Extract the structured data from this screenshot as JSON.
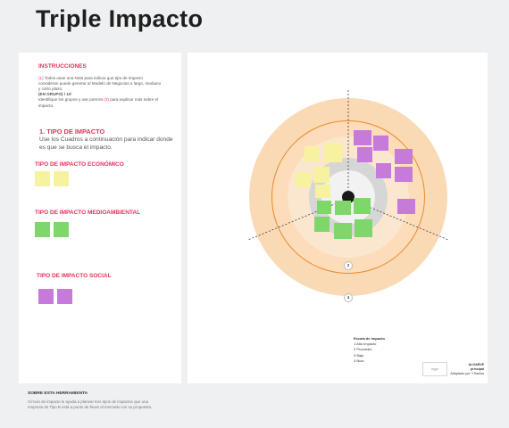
{
  "page_title": "Triple Impacto",
  "instructions": {
    "heading": "INSTRUCCIONES",
    "step1_number": "(1)",
    "step1_text": " Todos usan una Nota para indicar que tipo de impacto consideran puede generar al Modelo de Negocios a largo, mediano y corto plazo.",
    "group_line": "(EN GRUPO) / 10'",
    "step2_pre": "Identifique los grupos y use post-its ",
    "step2_number": "(2)",
    "step2_post": " para explicar más sobre el impacto."
  },
  "tipo": {
    "heading": "1. TIPO DE IMPACTO",
    "body": "Use los Cuadros a continuación para indicar donde es que se busca el impacto."
  },
  "categories": {
    "economico": "TIPO DE IMPACTO ECONÓMICO",
    "medioambiental": "TIPO DE IMPACTO MEDIOAMBIENTAL",
    "social": "TIPO DE IMPACTO SOCIAL"
  },
  "ring_labels": [
    "2",
    "4"
  ],
  "legend": {
    "title": "Escala de impacto",
    "items": [
      "1 Alto Impacto",
      "2 Promedio",
      "3 Bajo",
      "4 Nulo"
    ]
  },
  "credit": {
    "logo_text": "logo",
    "lines": [
      "ALGARVE",
      "principal",
      "Adaptado por: Y.Santos"
    ]
  },
  "footer": {
    "heading": "SOBRE ESTA HERRAMIENTA",
    "body": "Círculo de impacto le ayuda a planear tres tipos de impactos que una empresa de Tipo B está a punto de llevar al mercado con su propuesta."
  },
  "colors": {
    "accent_red": "#e8315b",
    "note_yellow": "#f7f2a0",
    "note_green": "#7fd66a",
    "note_purple": "#c67ad9",
    "ring_outer": "#fad9b5",
    "ring_line": "#e98a2a"
  }
}
